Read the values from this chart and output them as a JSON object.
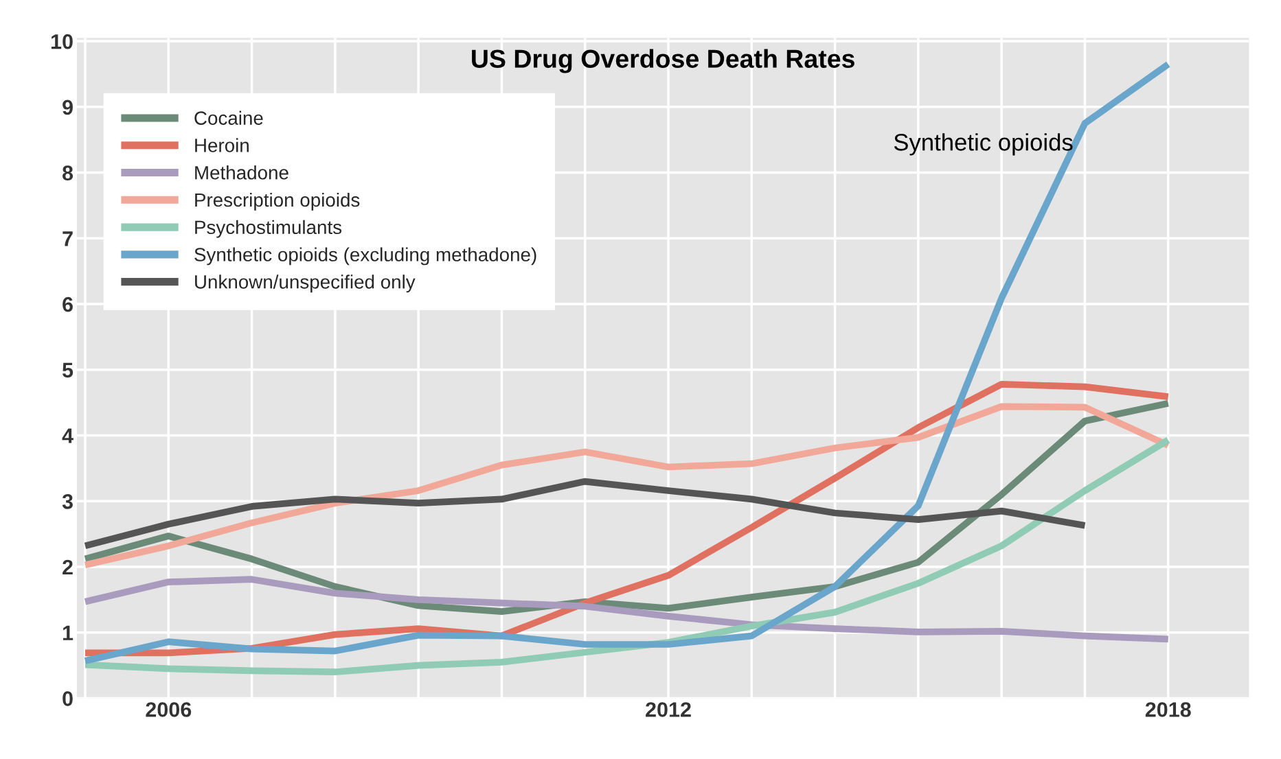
{
  "chart_data": {
    "type": "line",
    "title": "US Drug Overdose Death Rates",
    "x": [
      2005,
      2006,
      2007,
      2008,
      2009,
      2010,
      2011,
      2012,
      2013,
      2014,
      2015,
      2016,
      2017,
      2018
    ],
    "series": [
      {
        "name": "Cocaine",
        "color": "#6b8a78",
        "values": [
          2.12,
          2.47,
          2.12,
          1.7,
          1.41,
          1.32,
          1.47,
          1.37,
          1.54,
          1.7,
          2.07,
          3.1,
          4.22,
          4.49
        ]
      },
      {
        "name": "Heroin",
        "color": "#e07060",
        "values": [
          0.69,
          0.69,
          0.76,
          0.97,
          1.06,
          0.95,
          1.45,
          1.87,
          2.6,
          3.35,
          4.12,
          4.78,
          4.74,
          4.59
        ]
      },
      {
        "name": "Methadone",
        "color": "#a99bbd",
        "values": [
          1.47,
          1.77,
          1.81,
          1.6,
          1.5,
          1.45,
          1.4,
          1.25,
          1.12,
          1.06,
          1.01,
          1.02,
          0.95,
          0.9
        ]
      },
      {
        "name": "Prescription opioids",
        "color": "#f2a898",
        "values": [
          2.03,
          2.32,
          2.67,
          2.97,
          3.16,
          3.55,
          3.75,
          3.52,
          3.57,
          3.81,
          3.97,
          4.44,
          4.43,
          3.85
        ]
      },
      {
        "name": "Psychostimulants",
        "color": "#8fcbb5",
        "values": [
          0.51,
          0.45,
          0.42,
          0.4,
          0.5,
          0.55,
          0.7,
          0.85,
          1.1,
          1.31,
          1.75,
          2.32,
          3.16,
          3.93
        ]
      },
      {
        "name": "Synthetic opioids (excluding methadone)",
        "color": "#6aa6cc",
        "values": [
          0.57,
          0.86,
          0.75,
          0.72,
          0.96,
          0.95,
          0.82,
          0.82,
          0.95,
          1.7,
          2.93,
          6.09,
          8.75,
          9.65
        ]
      },
      {
        "name": "Unknown/unspecified only",
        "color": "#555555",
        "values": [
          2.32,
          2.65,
          2.92,
          3.03,
          2.97,
          3.03,
          3.3,
          3.16,
          3.03,
          2.82,
          2.72,
          2.85,
          2.63,
          null
        ]
      }
    ],
    "annotations": [
      {
        "text": "Synthetic opioids",
        "x": 2017,
        "y": 8.75
      }
    ],
    "xlim": [
      2004.9,
      2018.97
    ],
    "xticks": [
      {
        "value": 2005,
        "label": null
      },
      2006,
      {
        "value": 2007,
        "label": null
      },
      {
        "value": 2008,
        "label": null
      },
      {
        "value": 2009,
        "label": null
      },
      {
        "value": 2010,
        "label": null
      },
      {
        "value": 2011,
        "label": null
      },
      2012,
      {
        "value": 2013,
        "label": null
      },
      {
        "value": 2014,
        "label": null
      },
      {
        "value": 2015,
        "label": null
      },
      {
        "value": 2016,
        "label": null
      },
      {
        "value": 2017,
        "label": null
      },
      2018
    ],
    "ylim": [
      0,
      10.05
    ],
    "yticks": [
      0,
      1,
      2,
      3,
      4,
      5,
      6,
      7,
      8,
      9,
      10
    ],
    "grid": true,
    "legend": "top left",
    "marker": "none",
    "line_style": "solid"
  }
}
